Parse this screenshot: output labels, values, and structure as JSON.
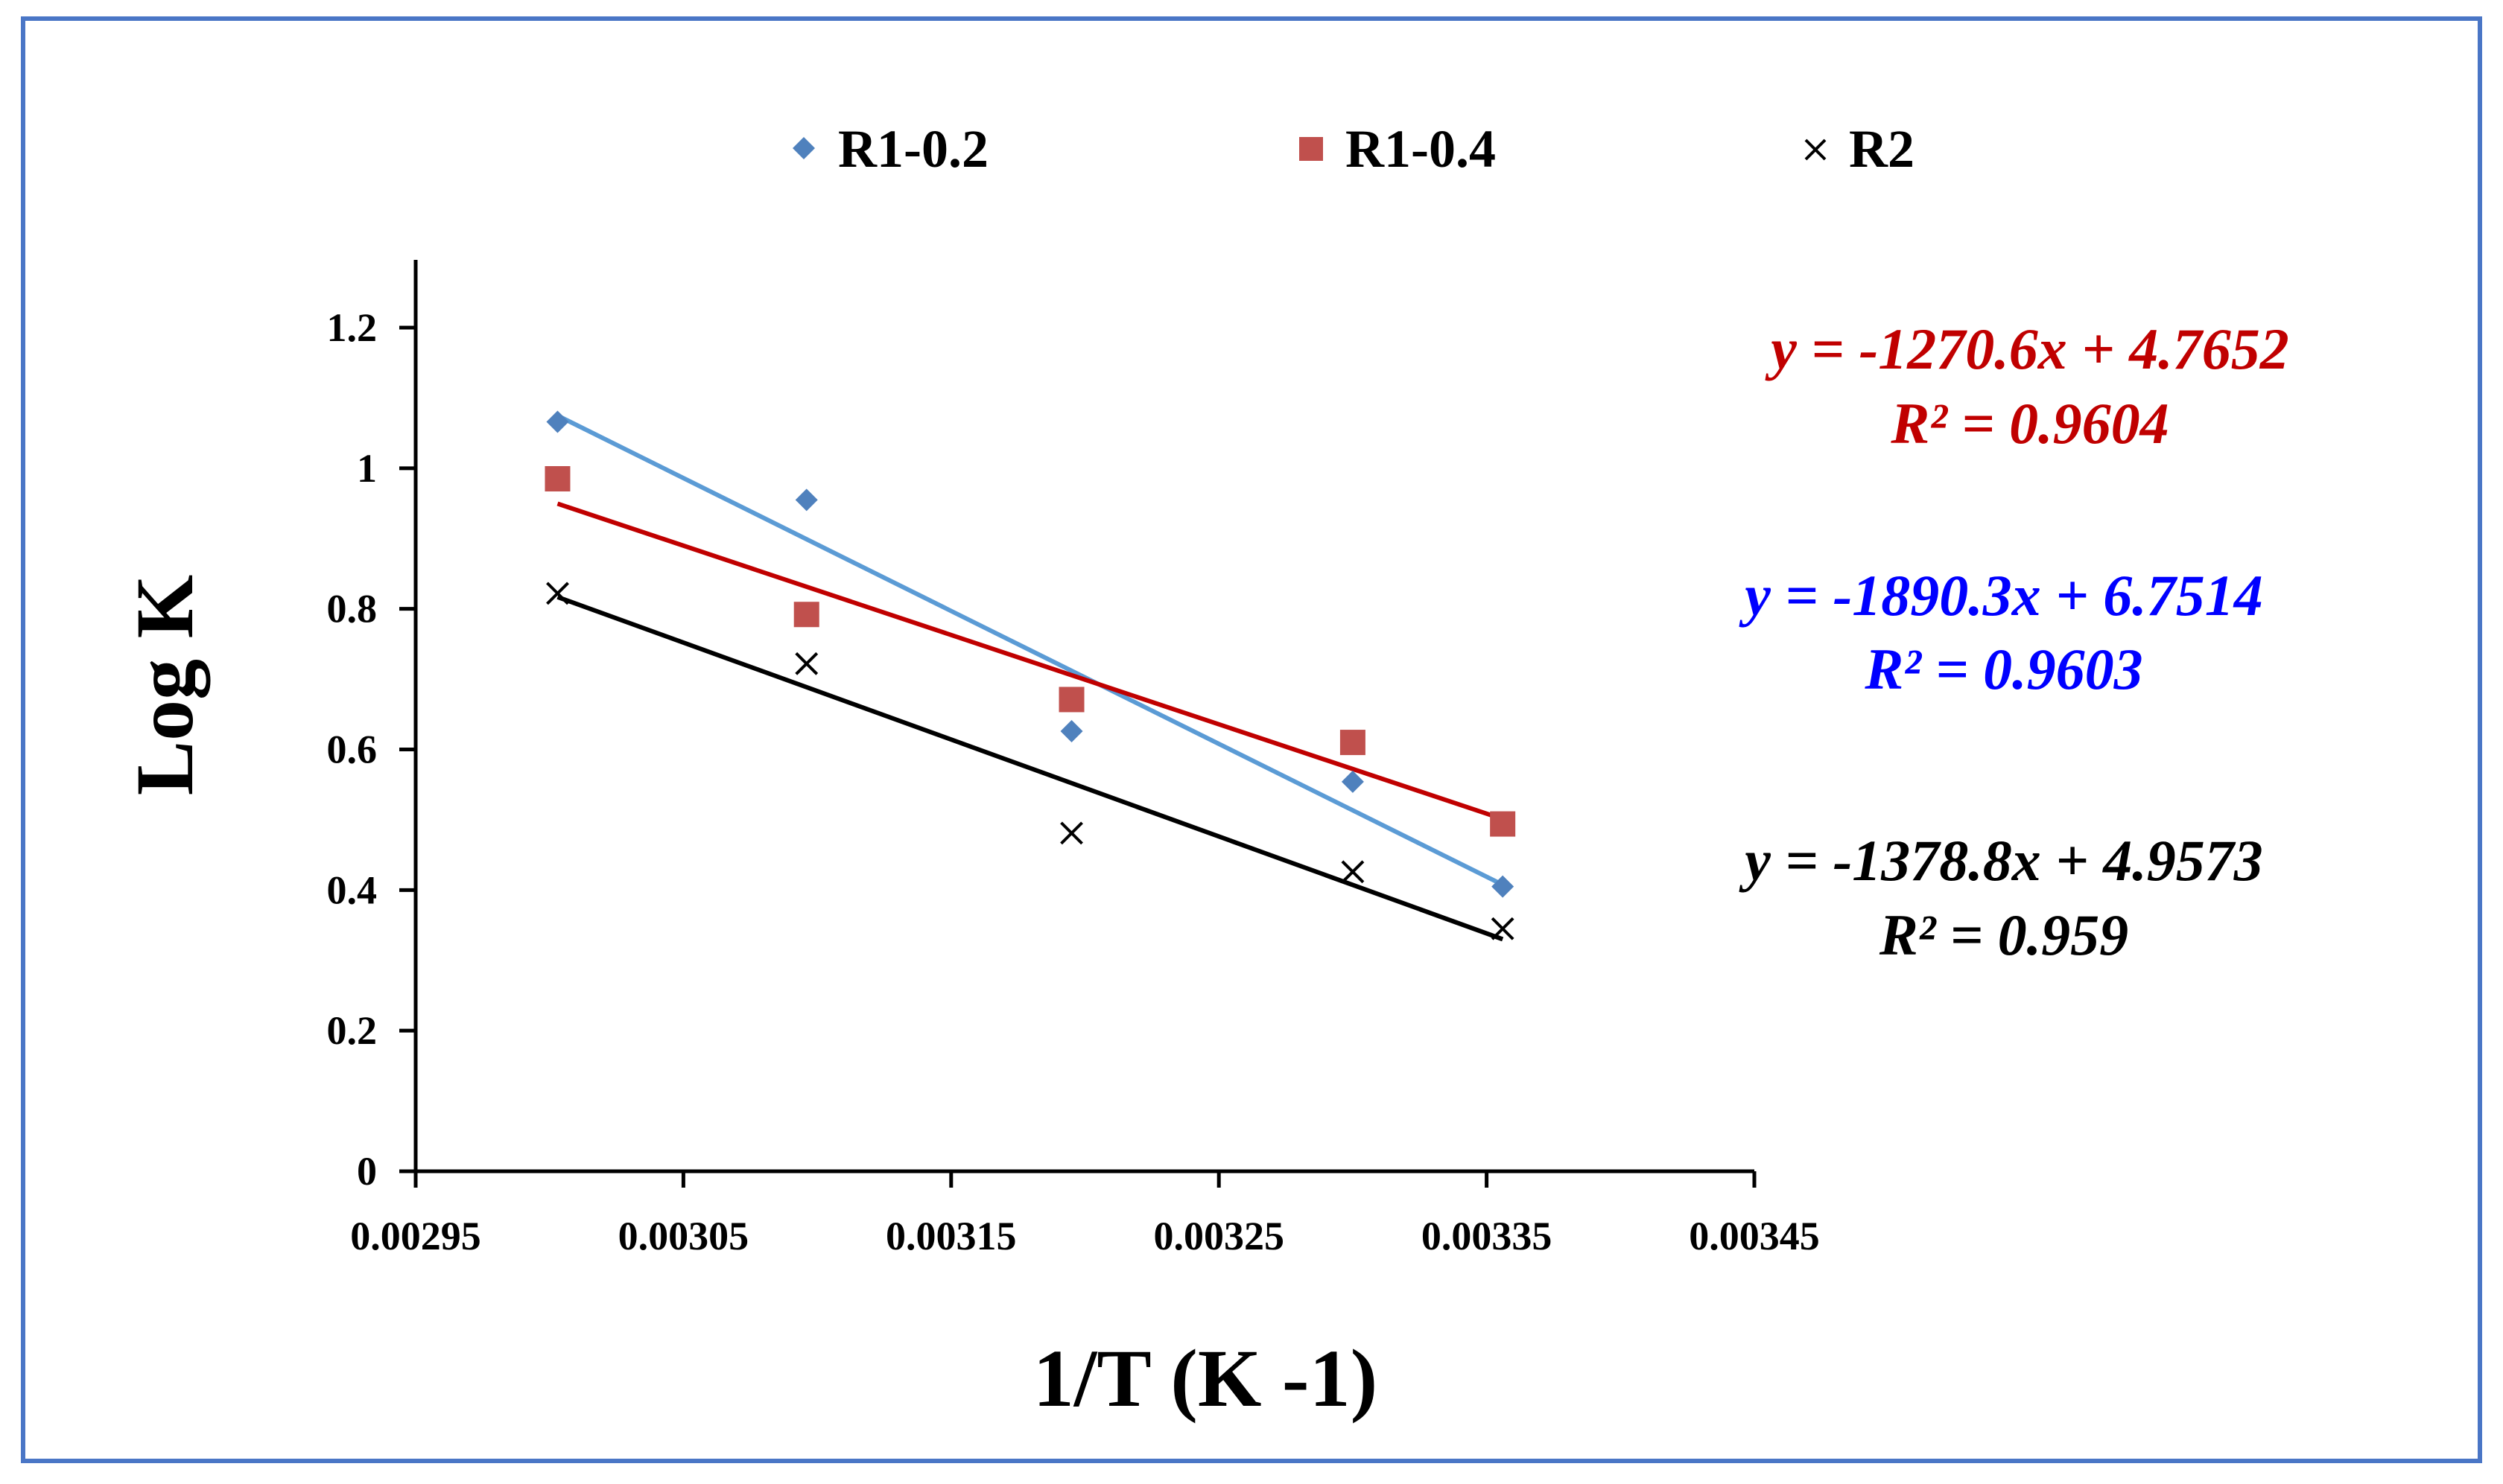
{
  "chart_data": {
    "type": "scatter",
    "title": "",
    "xlabel": "1/T (K -1)",
    "ylabel": "Log K",
    "xlim": [
      0.00295,
      0.00345
    ],
    "ylim": [
      0,
      1.3
    ],
    "x_ticks": [
      0.00295,
      0.00305,
      0.00315,
      0.00325,
      0.00335,
      0.00345
    ],
    "x_tick_labels": [
      "0.00295",
      "0.00305",
      "0.00315",
      "0.00325",
      "0.00335",
      "0.00345"
    ],
    "y_ticks": [
      0,
      0.2,
      0.4,
      0.6,
      0.8,
      1,
      1.2
    ],
    "y_tick_labels": [
      "0",
      "0.2",
      "0.4",
      "0.6",
      "0.8",
      "1",
      "1.2"
    ],
    "grid": false,
    "legend_position": "top",
    "series": [
      {
        "name": "R1-0.2",
        "marker": "diamond",
        "color": "#4f81bd",
        "trend_color": "#5b9bd5",
        "x": [
          0.003003,
          0.003096,
          0.003195,
          0.0033,
          0.003356
        ],
        "y": [
          1.066,
          0.955,
          0.626,
          0.554,
          0.405
        ],
        "trendline": {
          "slope": -1890.3,
          "intercept": 6.7514,
          "r2": 0.9603
        }
      },
      {
        "name": "R1-0.4",
        "marker": "square",
        "color": "#c0504d",
        "trend_color": "#c00000",
        "x": [
          0.003003,
          0.003096,
          0.003195,
          0.0033,
          0.003356
        ],
        "y": [
          0.985,
          0.792,
          0.671,
          0.61,
          0.494
        ],
        "trendline": {
          "slope": -1270.6,
          "intercept": 4.7652,
          "r2": 0.9604
        }
      },
      {
        "name": "R2",
        "marker": "x",
        "color": "#000000",
        "trend_color": "#000000",
        "x": [
          0.003003,
          0.003096,
          0.003195,
          0.0033,
          0.003356
        ],
        "y": [
          0.822,
          0.722,
          0.481,
          0.426,
          0.345
        ],
        "trendline": {
          "slope": -1378.8,
          "intercept": 4.9573,
          "r2": 0.959
        }
      }
    ],
    "annotations": [
      {
        "series": "R1-0.4",
        "equation": "y = -1270.6x + 4.7652",
        "r2_text": "R² = 0.9604",
        "color": "#c00000"
      },
      {
        "series": "R1-0.2",
        "equation": "y = -1890.3x + 6.7514",
        "r2_text": "R² = 0.9603",
        "color": "#0000ff"
      },
      {
        "series": "R2",
        "equation": "y = -1378.8x + 4.9573",
        "r2_text": "R² = 0.959",
        "color": "#000000"
      }
    ]
  }
}
